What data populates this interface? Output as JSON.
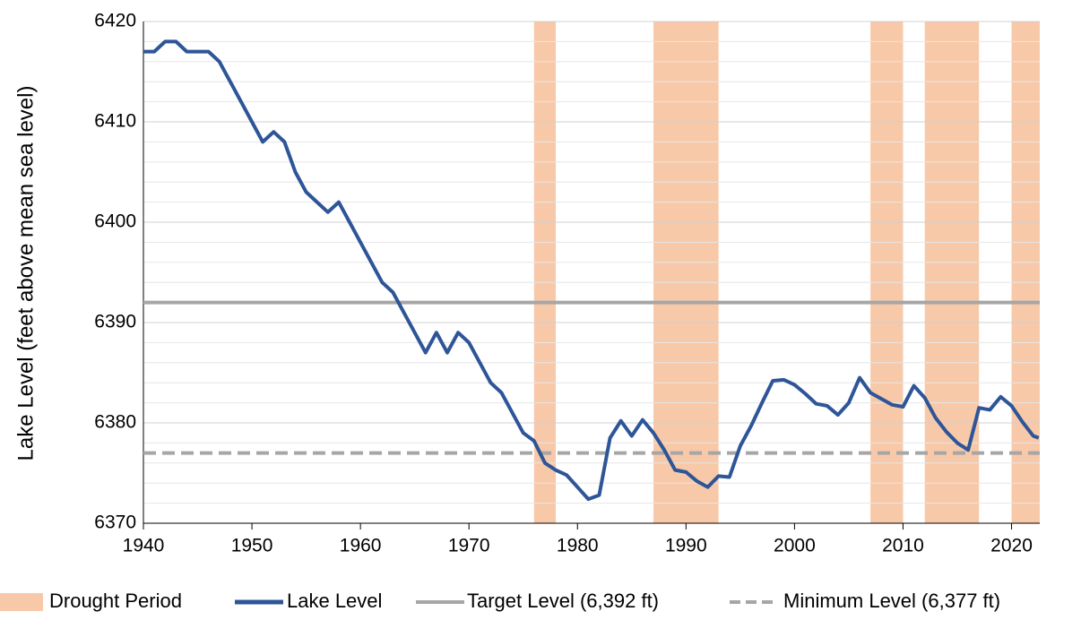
{
  "chart_data": {
    "type": "line",
    "y_label": "Lake Level (feet above mean sea level)",
    "xlim": [
      1940,
      2022.6
    ],
    "xticks": [
      1940,
      1950,
      1960,
      1970,
      1980,
      1990,
      2000,
      2010,
      2020
    ],
    "ylim": [
      6370,
      6420
    ],
    "yticks": [
      6370,
      6380,
      6390,
      6400,
      6410,
      6420
    ],
    "minor_yticks": [
      6372,
      6374,
      6376,
      6378,
      6382,
      6384,
      6386,
      6388,
      6392,
      6394,
      6396,
      6398,
      6402,
      6404,
      6406,
      6408,
      6412,
      6414,
      6416,
      6418
    ],
    "grid": true,
    "legend": "bottom",
    "drought": {
      "name": "Drought Period",
      "color": "#f8c9a8",
      "periods": [
        [
          1976,
          1978
        ],
        [
          1987,
          1993
        ],
        [
          2007,
          2010
        ],
        [
          2012,
          2017
        ],
        [
          2020,
          2022.6
        ]
      ]
    },
    "series": [
      {
        "name": "Lake Level",
        "color": "#2e5597",
        "x": [
          1940,
          1941,
          1942,
          1943,
          1944,
          1945,
          1946,
          1947,
          1948,
          1949,
          1950,
          1951,
          1952,
          1953,
          1954,
          1955,
          1956,
          1957,
          1958,
          1959,
          1960,
          1961,
          1962,
          1963,
          1964,
          1965,
          1966,
          1967,
          1968,
          1969,
          1970,
          1971,
          1972,
          1973,
          1974,
          1975,
          1976,
          1977,
          1978,
          1979,
          1980,
          1981,
          1982,
          1983,
          1984,
          1985,
          1986,
          1987,
          1988,
          1989,
          1990,
          1991,
          1992,
          1993,
          1994,
          1995,
          1996,
          1997,
          1998,
          1999,
          2000,
          2001,
          2002,
          2003,
          2004,
          2005,
          2006,
          2007,
          2008,
          2009,
          2010,
          2011,
          2012,
          2013,
          2014,
          2015,
          2016,
          2017,
          2018,
          2019,
          2020,
          2021,
          2022,
          2022.5
        ],
        "values": [
          6417,
          6417,
          6418,
          6418,
          6417,
          6417,
          6417,
          6416,
          6414,
          6412,
          6410,
          6408,
          6409,
          6408,
          6405,
          6403,
          6402,
          6401,
          6402,
          6400,
          6398,
          6396,
          6394,
          6393,
          6391,
          6389,
          6387,
          6389,
          6387,
          6389,
          6388,
          6386,
          6384,
          6383,
          6381,
          6379,
          6378.2,
          6376,
          6375.3,
          6374.8,
          6373.6,
          6372.4,
          6372.8,
          6378.5,
          6380.2,
          6378.7,
          6380.3,
          6379,
          6377.3,
          6375.3,
          6375.1,
          6374.2,
          6373.6,
          6374.7,
          6374.6,
          6377.7,
          6379.7,
          6382,
          6384.2,
          6384.3,
          6383.8,
          6382.9,
          6381.9,
          6381.7,
          6380.8,
          6382,
          6384.5,
          6383,
          6382.4,
          6381.8,
          6381.6,
          6383.7,
          6382.5,
          6380.5,
          6379.1,
          6378,
          6377.3,
          6381.5,
          6381.3,
          6382.6,
          6381.7,
          6380.1,
          6378.7,
          6378.5
        ]
      }
    ],
    "reference_lines": [
      {
        "name": "Target Level (6,392 ft)",
        "value": 6392,
        "color": "#a6a6a6",
        "dash": false
      },
      {
        "name": "Minimum  Level (6,377 ft)",
        "value": 6377,
        "color": "#a6a6a6",
        "dash": true
      }
    ]
  }
}
